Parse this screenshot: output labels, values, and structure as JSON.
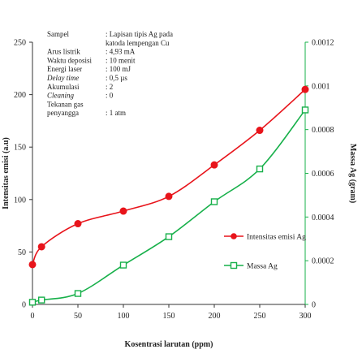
{
  "chart_data": {
    "type": "line",
    "xlabel": "Kosentrasi larutan (ppm)",
    "ylabel_left": "Intensitas emisi (a.u)",
    "ylabel_right": "Massa Ag (gram)",
    "x_ticks": [
      "0",
      "50",
      "100",
      "150",
      "200",
      "250",
      "300"
    ],
    "y_left_ticks": [
      "0",
      "50",
      "100",
      "150",
      "200",
      "250"
    ],
    "y_right_ticks": [
      "0",
      "0.0002",
      "0.0004",
      "0.0006",
      "0.0008",
      "0.001",
      "0.0012"
    ],
    "xlim": [
      0,
      300
    ],
    "ylim_left": [
      0,
      250
    ],
    "ylim_right": [
      0,
      0.0012
    ],
    "legend_position": "right",
    "series": [
      {
        "name": "Intensitas emisi Ag",
        "axis": "left",
        "color": "#e8141b",
        "marker": "circle",
        "x": [
          0,
          10,
          50,
          100,
          150,
          200,
          250,
          300
        ],
        "y": [
          38,
          55,
          77,
          89,
          103,
          133,
          166,
          205
        ]
      },
      {
        "name": "Massa Ag",
        "axis": "right",
        "color": "#17b04a",
        "marker": "square",
        "x": [
          0,
          10,
          50,
          100,
          150,
          200,
          250,
          300
        ],
        "y": [
          1e-05,
          2e-05,
          5e-05,
          0.00018,
          0.00031,
          0.00047,
          0.00062,
          0.00089
        ]
      }
    ]
  },
  "info_box": {
    "rows": [
      {
        "label": "Sampel",
        "value": ": Lapisan tipis Ag pada",
        "italic": false
      },
      {
        "label": "",
        "value": "  katoda lempengan Cu",
        "italic": false
      },
      {
        "label": "Arus listrik",
        "value": ": 4,93 mA",
        "italic": false
      },
      {
        "label": "Waktu deposisi",
        "value": ": 10 menit",
        "italic": false
      },
      {
        "label": "Energi laser",
        "value": ": 100 mJ",
        "italic": false
      },
      {
        "label": "Delay time",
        "value": ": 0,5 µs",
        "italic": true
      },
      {
        "label": "Akumulasi",
        "value": ": 2",
        "italic": false
      },
      {
        "label": "Cleaning",
        "value": ": 0",
        "italic": true
      },
      {
        "label": "Tekanan gas",
        "value": "",
        "italic": false
      },
      {
        "label": "penyangga",
        "value": ": 1 atm",
        "italic": false
      }
    ]
  }
}
